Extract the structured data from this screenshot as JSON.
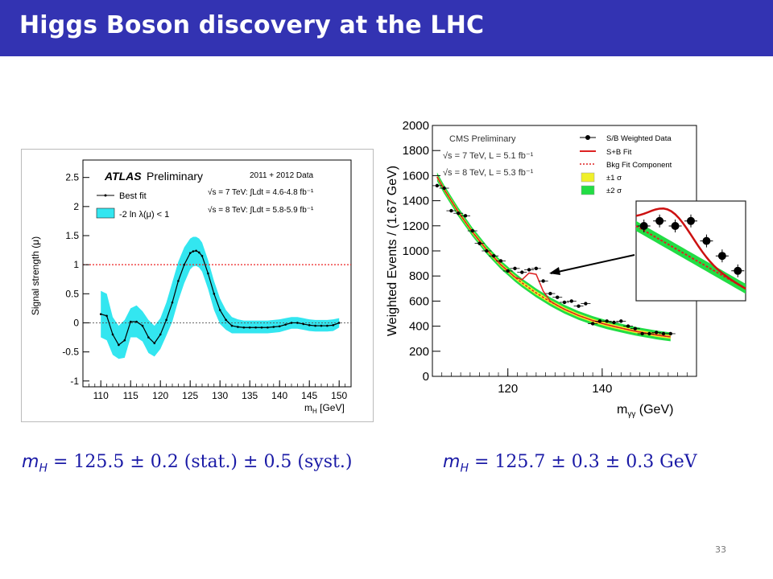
{
  "slide": {
    "title": "Higgs Boson discovery at the LHC",
    "page_number": "33",
    "title_bar_color": "#3333b2",
    "formula_color": "#1a1aa6"
  },
  "formulas": {
    "atlas": "m_H = 125.5 ± 0.2 (stat.) ± 0.5 (syst.)",
    "atlas_var": "m",
    "atlas_sub": "H",
    "atlas_rest": " = 125.5 ± 0.2 (stat.) ± 0.5 (syst.)",
    "cms": "m_H = 125.7 ± 0.3 ± 0.3 GeV",
    "cms_var": "m",
    "cms_sub": "H",
    "cms_rest": " = 125.7 ± 0.3 ± 0.3 GeV"
  },
  "chart_data": [
    {
      "type": "line",
      "experiment": "ATLAS",
      "header": "Preliminary",
      "data_label": "2011 + 2012 Data",
      "energy_7": "√s = 7 TeV: ∫Ldt = 4.6-4.8 fb⁻¹",
      "energy_8": "√s = 8 TeV: ∫Ldt = 5.8-5.9 fb⁻¹",
      "legend": [
        "Best fit",
        "-2 ln λ(μ) < 1"
      ],
      "xlabel": "m_H [GeV]",
      "xlabel_main": "m",
      "xlabel_sub": "H",
      "xlabel_unit": "[GeV]",
      "ylabel": "Signal strength (μ)",
      "xlim": [
        107,
        152
      ],
      "ylim": [
        -1.1,
        2.8
      ],
      "xticks": [
        110,
        115,
        120,
        125,
        130,
        135,
        140,
        145,
        150
      ],
      "yticks": [
        -1,
        -0.5,
        0,
        0.5,
        1,
        1.5,
        2,
        2.5
      ],
      "ytick_labels": [
        "-1",
        "-0.5",
        "0",
        "0.5",
        "1",
        "1.5",
        "2",
        "2.5"
      ],
      "reference_line": 1,
      "band_color": "#33e6f0",
      "x": [
        110,
        111,
        112,
        113,
        114,
        115,
        116,
        117,
        118,
        119,
        120,
        121,
        122,
        123,
        124,
        125,
        125.5,
        126,
        126.5,
        127,
        128,
        129,
        130,
        131,
        132,
        133,
        134,
        135,
        136,
        137,
        138,
        139,
        140,
        141,
        142,
        143,
        144,
        145,
        146,
        147,
        148,
        149,
        150
      ],
      "y": [
        0.15,
        0.12,
        -0.2,
        -0.38,
        -0.3,
        0.02,
        0.02,
        -0.05,
        -0.25,
        -0.35,
        -0.2,
        0.05,
        0.35,
        0.72,
        1.0,
        1.2,
        1.23,
        1.24,
        1.21,
        1.15,
        0.85,
        0.5,
        0.22,
        0.05,
        -0.05,
        -0.07,
        -0.08,
        -0.08,
        -0.08,
        -0.08,
        -0.08,
        -0.07,
        -0.06,
        -0.03,
        0.0,
        0.0,
        -0.02,
        -0.04,
        -0.05,
        -0.05,
        -0.05,
        -0.04,
        0.0
      ],
      "band_hi": [
        0.55,
        0.5,
        0.1,
        -0.05,
        0.05,
        0.25,
        0.3,
        0.2,
        0.05,
        -0.05,
        0.08,
        0.35,
        0.7,
        1.05,
        1.3,
        1.45,
        1.48,
        1.48,
        1.45,
        1.38,
        1.08,
        0.72,
        0.42,
        0.22,
        0.1,
        0.06,
        0.04,
        0.04,
        0.04,
        0.04,
        0.04,
        0.05,
        0.06,
        0.08,
        0.1,
        0.1,
        0.08,
        0.06,
        0.05,
        0.05,
        0.05,
        0.06,
        0.08
      ],
      "band_lo": [
        -0.25,
        -0.3,
        -0.55,
        -0.62,
        -0.6,
        -0.25,
        -0.25,
        -0.32,
        -0.52,
        -0.58,
        -0.45,
        -0.22,
        0.02,
        0.38,
        0.68,
        0.92,
        0.97,
        0.98,
        0.95,
        0.88,
        0.58,
        0.22,
        -0.02,
        -0.12,
        -0.18,
        -0.18,
        -0.18,
        -0.18,
        -0.18,
        -0.18,
        -0.18,
        -0.17,
        -0.16,
        -0.13,
        -0.1,
        -0.1,
        -0.12,
        -0.14,
        -0.15,
        -0.15,
        -0.15,
        -0.14,
        -0.08
      ]
    },
    {
      "type": "scatter",
      "experiment": "CMS",
      "header": "CMS Preliminary",
      "energy_7": "√s = 7 TeV, L = 5.1 fb⁻¹",
      "energy_8": "√s = 8 TeV, L = 5.3 fb⁻¹",
      "legend": [
        "S/B Weighted Data",
        "S+B Fit",
        "Bkg Fit Component",
        "±1 σ",
        "±2 σ"
      ],
      "legend_colors": [
        "#000000",
        "#dd2222",
        "#dd2222",
        "#f0f02a",
        "#22dd44"
      ],
      "xlabel": "m_γγ (GeV)",
      "xlabel_main": "m",
      "xlabel_sub": "γγ",
      "xlabel_unit": "(GeV)",
      "ylabel": "Weighted Events / (1.67 GeV)",
      "xlim": [
        104,
        160
      ],
      "ylim": [
        0,
        2000
      ],
      "xticks": [
        120,
        140
      ],
      "yticks": [
        0,
        200,
        400,
        600,
        800,
        1000,
        1200,
        1400,
        1600,
        1800,
        2000
      ],
      "x": [
        105,
        106.5,
        108,
        109.5,
        111,
        112.5,
        114,
        115.5,
        117,
        118.5,
        120,
        121.5,
        123,
        124.5,
        126,
        127.5,
        129,
        130.5,
        132,
        133.5,
        135,
        136.5,
        138,
        139.5,
        141,
        142.5,
        144,
        145.5,
        147,
        148.5,
        150,
        151.5,
        153,
        154.5
      ],
      "y": [
        1520,
        1500,
        1320,
        1300,
        1280,
        1160,
        1060,
        1000,
        960,
        920,
        840,
        860,
        830,
        850,
        860,
        760,
        660,
        630,
        590,
        600,
        560,
        580,
        420,
        440,
        440,
        430,
        440,
        400,
        380,
        340,
        340,
        350,
        340,
        340
      ],
      "bkg": [
        1590,
        1490,
        1400,
        1310,
        1230,
        1150,
        1080,
        1010,
        950,
        890,
        840,
        790,
        745,
        705,
        665,
        630,
        595,
        565,
        535,
        510,
        485,
        465,
        445,
        428,
        412,
        398,
        385,
        372,
        360,
        350,
        340,
        330,
        322,
        315
      ],
      "inset_x": [
        124,
        125,
        126,
        127,
        128,
        129,
        130
      ],
      "inset_y": [
        710,
        720,
        710,
        720,
        680,
        650,
        620
      ]
    }
  ]
}
